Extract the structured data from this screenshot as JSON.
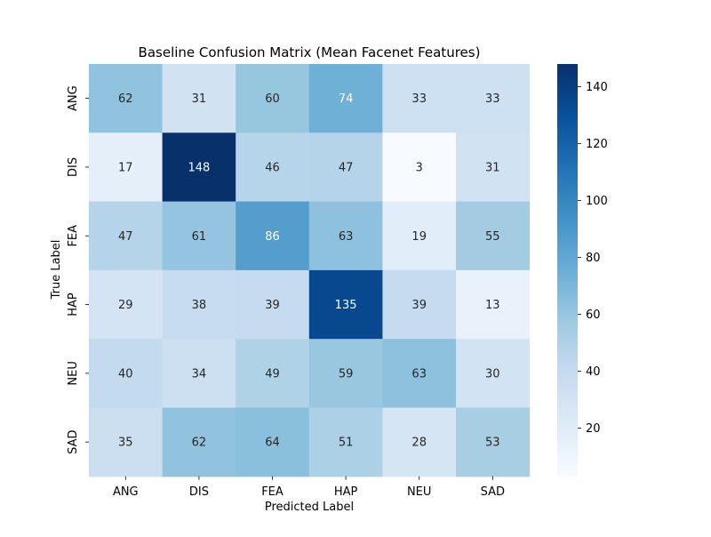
{
  "chart_data": {
    "type": "heatmap",
    "title": "Baseline Confusion Matrix (Mean Facenet Features)",
    "xlabel": "Predicted Label",
    "ylabel": "True Label",
    "x_categories": [
      "ANG",
      "DIS",
      "FEA",
      "HAP",
      "NEU",
      "SAD"
    ],
    "y_categories": [
      "ANG",
      "DIS",
      "FEA",
      "HAP",
      "NEU",
      "SAD"
    ],
    "values": [
      [
        62,
        31,
        60,
        74,
        33,
        33
      ],
      [
        17,
        148,
        46,
        47,
        3,
        31
      ],
      [
        47,
        61,
        86,
        63,
        19,
        55
      ],
      [
        29,
        38,
        39,
        135,
        39,
        13
      ],
      [
        40,
        34,
        49,
        59,
        63,
        30
      ],
      [
        35,
        62,
        64,
        51,
        28,
        53
      ]
    ],
    "colormap": "Blues",
    "color_range": [
      3,
      148
    ],
    "colorbar_ticks": [
      20,
      40,
      60,
      80,
      100,
      120,
      140
    ],
    "annotations": true,
    "grid": false
  }
}
